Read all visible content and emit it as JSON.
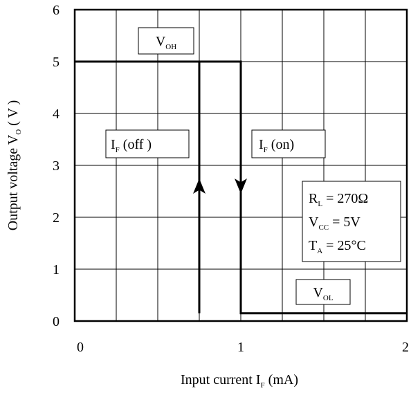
{
  "chart_data": {
    "type": "line",
    "title": "",
    "xlabel": {
      "main": "Input current I",
      "sub": "F",
      "tail": " (mA)"
    },
    "ylabel": {
      "main": "Output voltage V",
      "sub": "O",
      "tail": " ( V )"
    },
    "xlim": [
      0,
      2
    ],
    "ylim": [
      0,
      6
    ],
    "x_ticks": [
      0,
      1,
      2
    ],
    "x_tick_labels": [
      "0",
      "1",
      "2"
    ],
    "y_ticks": [
      0,
      1,
      2,
      3,
      4,
      5,
      6
    ],
    "y_tick_labels": [
      "0",
      "1",
      "2",
      "3",
      "4",
      "5",
      "6"
    ],
    "grid": true,
    "series": [
      {
        "x": [
          0,
          1.0,
          1.0,
          2.0
        ],
        "y": [
          5.0,
          5.0,
          0.15,
          0.15
        ]
      },
      {
        "x": [
          0.75,
          0.75
        ],
        "y": [
          0.15,
          5.0
        ]
      }
    ],
    "arrows": [
      {
        "x": 0.75,
        "y": 2.6,
        "direction": "up"
      },
      {
        "x": 1.0,
        "y": 2.6,
        "direction": "down"
      }
    ],
    "annotations": [
      {
        "id": "voh",
        "main": "V",
        "sub": "OH",
        "tail": ""
      },
      {
        "id": "if-off",
        "main": "I",
        "sub": "F",
        "tail": " (off )"
      },
      {
        "id": "if-on",
        "main": "I",
        "sub": "F",
        "tail": " (on)"
      },
      {
        "id": "vol",
        "main": "V",
        "sub": "OL",
        "tail": ""
      }
    ],
    "conditions": [
      {
        "main": "R",
        "sub": "L",
        "tail": " = 270Ω"
      },
      {
        "main": "V",
        "sub": "CC",
        "tail": " = 5V"
      },
      {
        "main": "T",
        "sub": "A",
        "tail": " = 25°C"
      }
    ]
  }
}
